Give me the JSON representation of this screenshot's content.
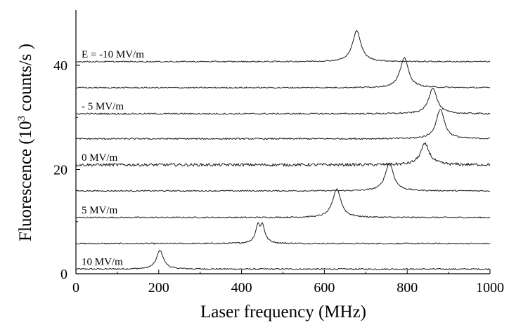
{
  "chart_data": {
    "type": "line",
    "title": "",
    "xlabel": "Laser frequency (MHz)",
    "ylabel_parts": {
      "before": "Fluorescence (10",
      "sup": "3",
      "after": " counts/s )"
    },
    "xlim": [
      0,
      1000
    ],
    "ylim": [
      0,
      50
    ],
    "xticks": [
      0,
      200,
      400,
      600,
      800,
      1000
    ],
    "yticks": [
      0,
      20,
      40
    ],
    "grid": false,
    "legend": "none",
    "line_color": "#1a1a1a",
    "series": [
      {
        "baseline": 0.9,
        "peak_x": 203,
        "height": 3.6,
        "width": 10,
        "noise": 0.12,
        "double": false
      },
      {
        "baseline": 5.8,
        "peak_x": 445,
        "height": 3.6,
        "width": 12,
        "noise": 0.12,
        "double": true
      },
      {
        "baseline": 10.8,
        "peak_x": 630,
        "height": 5.5,
        "width": 12,
        "noise": 0.12,
        "double": false
      },
      {
        "baseline": 15.9,
        "peak_x": 757,
        "height": 5.4,
        "width": 12,
        "noise": 0.12,
        "double": false
      },
      {
        "baseline": 20.9,
        "peak_x": 843,
        "height": 4.0,
        "width": 13,
        "noise": 0.28,
        "double": false
      },
      {
        "baseline": 25.9,
        "peak_x": 880,
        "height": 5.7,
        "width": 12,
        "noise": 0.14,
        "double": false
      },
      {
        "baseline": 30.7,
        "peak_x": 862,
        "height": 5.0,
        "width": 12,
        "noise": 0.14,
        "double": false
      },
      {
        "baseline": 35.7,
        "peak_x": 793,
        "height": 5.8,
        "width": 12,
        "noise": 0.12,
        "double": false
      },
      {
        "baseline": 40.7,
        "peak_x": 678,
        "height": 6.0,
        "width": 12,
        "noise": 0.12,
        "double": false
      }
    ],
    "annotations": [
      {
        "text": "E = -10 MV/m",
        "series": 8
      },
      {
        "text": "- 5 MV/m",
        "series": 6
      },
      {
        "text": "0  MV/m",
        "series": 4
      },
      {
        "text": "5 MV/m",
        "series": 2
      },
      {
        "text": "10 MV/m",
        "series": 0
      }
    ]
  }
}
